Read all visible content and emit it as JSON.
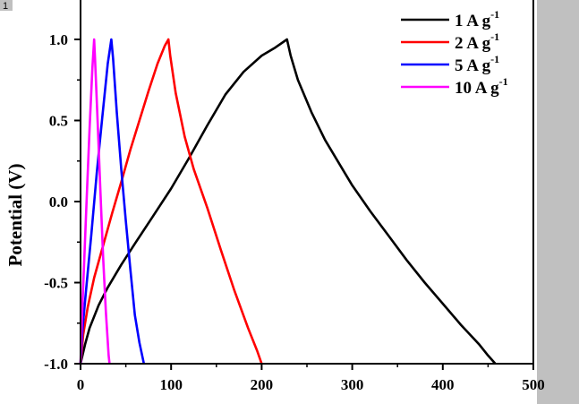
{
  "panel_label": "1",
  "colors": {
    "right_margin": "#c0c0c0",
    "panel_label_bg": "#c0c0c0"
  },
  "chart_data": {
    "type": "line",
    "title": "",
    "xlabel": "",
    "ylabel": "Potential (V)",
    "xlim": [
      0,
      500
    ],
    "ylim": [
      -1.0,
      1.0
    ],
    "x_ticks": [
      0,
      100,
      200,
      300,
      400,
      500
    ],
    "x_tick_labels": [
      "0",
      "100",
      "200",
      "300",
      "400",
      "500"
    ],
    "y_ticks": [
      -1.0,
      -0.5,
      0.0,
      0.5,
      1.0
    ],
    "y_tick_labels": [
      "-1.0",
      "-0.5",
      "0.0",
      "0.5",
      "1.0"
    ],
    "grid": false,
    "legend_position": "top-right",
    "series": [
      {
        "name": "1 A g",
        "superscript": "-1",
        "color": "#000000",
        "x": [
          0,
          5,
          10,
          20,
          30,
          45,
          60,
          80,
          100,
          120,
          140,
          160,
          180,
          200,
          215,
          228,
          232,
          240,
          255,
          270,
          285,
          300,
          320,
          340,
          360,
          380,
          400,
          420,
          440,
          450,
          458
        ],
        "y": [
          -1.0,
          -0.88,
          -0.78,
          -0.64,
          -0.53,
          -0.39,
          -0.26,
          -0.09,
          0.08,
          0.27,
          0.47,
          0.66,
          0.8,
          0.9,
          0.95,
          1.0,
          0.9,
          0.75,
          0.55,
          0.38,
          0.24,
          0.1,
          -0.06,
          -0.21,
          -0.36,
          -0.5,
          -0.63,
          -0.76,
          -0.88,
          -0.95,
          -1.0
        ]
      },
      {
        "name": "2 A g",
        "superscript": "-1",
        "color": "#ff0000",
        "x": [
          0,
          3,
          8,
          15,
          25,
          35,
          45,
          55,
          65,
          75,
          85,
          93,
          97,
          99,
          105,
          115,
          125,
          140,
          155,
          170,
          185,
          195,
          200
        ],
        "y": [
          -1.0,
          -0.82,
          -0.65,
          -0.47,
          -0.27,
          -0.07,
          0.12,
          0.32,
          0.5,
          0.68,
          0.85,
          0.96,
          1.0,
          0.9,
          0.67,
          0.4,
          0.2,
          -0.04,
          -0.3,
          -0.55,
          -0.78,
          -0.92,
          -1.0
        ]
      },
      {
        "name": "5 A g",
        "superscript": "-1",
        "color": "#0000ff",
        "x": [
          0,
          2,
          6,
          12,
          18,
          24,
          30,
          34,
          36,
          40,
          45,
          50,
          55,
          60,
          65,
          70
        ],
        "y": [
          -1.0,
          -0.8,
          -0.55,
          -0.2,
          0.18,
          0.52,
          0.85,
          1.0,
          0.88,
          0.55,
          0.2,
          -0.12,
          -0.42,
          -0.7,
          -0.87,
          -1.0
        ]
      },
      {
        "name": "10 A g",
        "superscript": "-1",
        "color": "#ff00ff",
        "x": [
          0,
          1.5,
          4,
          7,
          10,
          13,
          15,
          16,
          19,
          22,
          25,
          28,
          31,
          32
        ],
        "y": [
          -1.0,
          -0.72,
          -0.38,
          0.05,
          0.45,
          0.82,
          1.0,
          0.88,
          0.48,
          0.05,
          -0.35,
          -0.68,
          -0.95,
          -1.0
        ]
      }
    ]
  }
}
